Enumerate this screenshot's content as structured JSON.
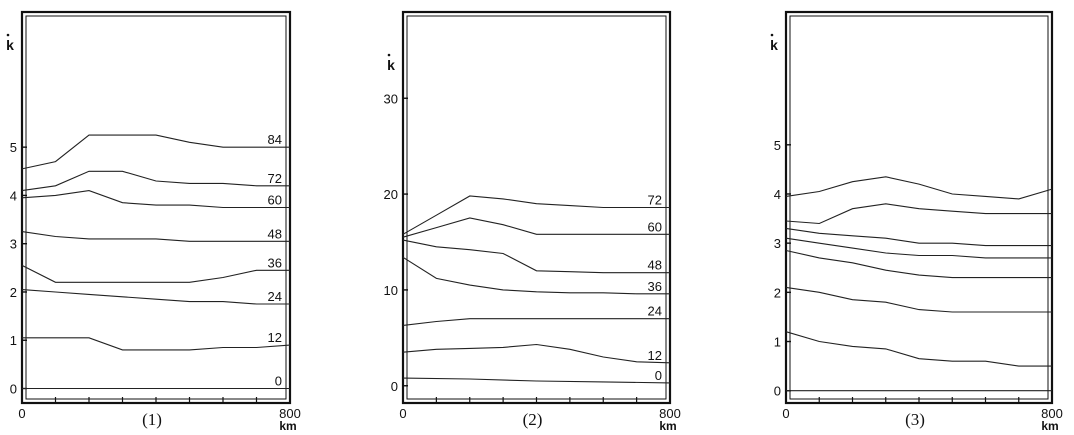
{
  "chart_data": [
    {
      "type": "line",
      "panel_label": "(1)",
      "ylabel": "k",
      "x_unit": "km",
      "x_ticks": [
        "0",
        "800"
      ],
      "y_ticks": [
        "0",
        "1",
        "2",
        "3",
        "4",
        "5"
      ],
      "xlim": [
        0,
        800
      ],
      "ylim": [
        -0.3,
        7.8
      ],
      "grid": false,
      "series": [
        {
          "name": "0",
          "x": [
            0,
            200,
            400,
            600,
            800
          ],
          "y": [
            0.0,
            0.0,
            0.0,
            0.0,
            0.0
          ]
        },
        {
          "name": "12",
          "x": [
            0,
            100,
            200,
            300,
            400,
            500,
            600,
            700,
            800
          ],
          "y": [
            1.05,
            1.05,
            1.05,
            0.8,
            0.8,
            0.8,
            0.85,
            0.85,
            0.9
          ]
        },
        {
          "name": "24",
          "x": [
            0,
            100,
            200,
            300,
            400,
            500,
            600,
            700,
            800
          ],
          "y": [
            2.05,
            2.0,
            1.95,
            1.9,
            1.85,
            1.8,
            1.8,
            1.75,
            1.75
          ]
        },
        {
          "name": "36",
          "x": [
            0,
            100,
            200,
            300,
            400,
            500,
            600,
            700,
            800
          ],
          "y": [
            2.55,
            2.2,
            2.2,
            2.2,
            2.2,
            2.2,
            2.3,
            2.45,
            2.45
          ]
        },
        {
          "name": "48",
          "x": [
            0,
            100,
            200,
            300,
            400,
            500,
            600,
            700,
            800
          ],
          "y": [
            3.25,
            3.15,
            3.1,
            3.1,
            3.1,
            3.05,
            3.05,
            3.05,
            3.05
          ]
        },
        {
          "name": "60",
          "x": [
            0,
            100,
            200,
            300,
            400,
            500,
            600,
            700,
            800
          ],
          "y": [
            3.95,
            4.0,
            4.1,
            3.85,
            3.8,
            3.8,
            3.75,
            3.75,
            3.75
          ]
        },
        {
          "name": "72",
          "x": [
            0,
            100,
            200,
            300,
            400,
            500,
            600,
            700,
            800
          ],
          "y": [
            4.1,
            4.2,
            4.5,
            4.5,
            4.3,
            4.25,
            4.25,
            4.2,
            4.2
          ]
        },
        {
          "name": "84",
          "x": [
            0,
            100,
            200,
            300,
            400,
            500,
            600,
            700,
            800
          ],
          "y": [
            4.55,
            4.7,
            5.25,
            5.25,
            5.25,
            5.1,
            5.0,
            5.0,
            5.0
          ]
        }
      ]
    },
    {
      "type": "line",
      "panel_label": "(2)",
      "ylabel": "k",
      "x_unit": "km",
      "x_ticks": [
        "0",
        "800"
      ],
      "y_ticks": [
        "0",
        "10",
        "20",
        "30"
      ],
      "xlim": [
        0,
        800
      ],
      "ylim": [
        -1.8,
        39
      ],
      "grid": false,
      "series": [
        {
          "name": "0",
          "x": [
            0,
            200,
            400,
            600,
            800
          ],
          "y": [
            0.8,
            0.7,
            0.5,
            0.4,
            0.3
          ]
        },
        {
          "name": "12",
          "x": [
            0,
            100,
            200,
            300,
            400,
            500,
            600,
            700,
            800
          ],
          "y": [
            3.5,
            3.8,
            3.9,
            4.0,
            4.3,
            3.8,
            3.0,
            2.5,
            2.4
          ]
        },
        {
          "name": "24",
          "x": [
            0,
            100,
            200,
            300,
            400,
            500,
            600,
            700,
            800
          ],
          "y": [
            6.3,
            6.7,
            7.0,
            7.0,
            7.0,
            7.0,
            7.0,
            7.0,
            7.0
          ]
        },
        {
          "name": "36",
          "x": [
            0,
            100,
            200,
            300,
            400,
            500,
            600,
            700,
            800
          ],
          "y": [
            13.4,
            11.2,
            10.5,
            10.0,
            9.8,
            9.7,
            9.7,
            9.6,
            9.6
          ]
        },
        {
          "name": "48",
          "x": [
            0,
            100,
            200,
            300,
            400,
            500,
            600,
            700,
            800
          ],
          "y": [
            15.2,
            14.5,
            14.2,
            13.8,
            12.0,
            11.9,
            11.8,
            11.8,
            11.8
          ]
        },
        {
          "name": "60",
          "x": [
            0,
            100,
            200,
            300,
            400,
            500,
            600,
            700,
            800
          ],
          "y": [
            15.5,
            16.5,
            17.5,
            16.8,
            15.8,
            15.8,
            15.8,
            15.8,
            15.8
          ]
        },
        {
          "name": "72",
          "x": [
            0,
            100,
            200,
            300,
            400,
            500,
            600,
            700,
            800
          ],
          "y": [
            15.8,
            17.8,
            19.8,
            19.5,
            19.0,
            18.8,
            18.6,
            18.6,
            18.6
          ]
        }
      ]
    },
    {
      "type": "line",
      "panel_label": "(3)",
      "ylabel": "k",
      "x_unit": "km",
      "x_ticks": [
        "0",
        "800"
      ],
      "y_ticks": [
        "0",
        "1",
        "2",
        "3",
        "4",
        "5"
      ],
      "xlim": [
        0,
        800
      ],
      "ylim": [
        -0.25,
        7.7
      ],
      "grid": false,
      "series": [
        {
          "name": "",
          "x": [
            0,
            200,
            400,
            600,
            800
          ],
          "y": [
            0.0,
            0.0,
            0.0,
            0.0,
            0.0
          ]
        },
        {
          "name": "",
          "x": [
            0,
            100,
            200,
            300,
            400,
            500,
            600,
            700,
            800
          ],
          "y": [
            1.2,
            1.0,
            0.9,
            0.85,
            0.65,
            0.6,
            0.6,
            0.5,
            0.5
          ]
        },
        {
          "name": "",
          "x": [
            0,
            100,
            200,
            300,
            400,
            500,
            600,
            700,
            800
          ],
          "y": [
            2.1,
            2.0,
            1.85,
            1.8,
            1.65,
            1.6,
            1.6,
            1.6,
            1.6
          ]
        },
        {
          "name": "",
          "x": [
            0,
            100,
            200,
            300,
            400,
            500,
            600,
            700,
            800
          ],
          "y": [
            2.85,
            2.7,
            2.6,
            2.45,
            2.35,
            2.3,
            2.3,
            2.3,
            2.3
          ]
        },
        {
          "name": "",
          "x": [
            0,
            100,
            200,
            300,
            400,
            500,
            600,
            700,
            800
          ],
          "y": [
            3.1,
            3.0,
            2.9,
            2.8,
            2.75,
            2.75,
            2.7,
            2.7,
            2.7
          ]
        },
        {
          "name": "",
          "x": [
            0,
            100,
            200,
            300,
            400,
            500,
            600,
            700,
            800
          ],
          "y": [
            3.3,
            3.2,
            3.15,
            3.1,
            3.0,
            3.0,
            2.95,
            2.95,
            2.95
          ]
        },
        {
          "name": "",
          "x": [
            0,
            100,
            200,
            300,
            400,
            500,
            600,
            700,
            800
          ],
          "y": [
            3.45,
            3.4,
            3.7,
            3.8,
            3.7,
            3.65,
            3.6,
            3.6,
            3.6
          ]
        },
        {
          "name": "",
          "x": [
            0,
            100,
            200,
            300,
            400,
            500,
            600,
            700,
            800
          ],
          "y": [
            3.95,
            4.05,
            4.25,
            4.35,
            4.2,
            4.0,
            3.95,
            3.9,
            4.1
          ]
        }
      ]
    }
  ]
}
